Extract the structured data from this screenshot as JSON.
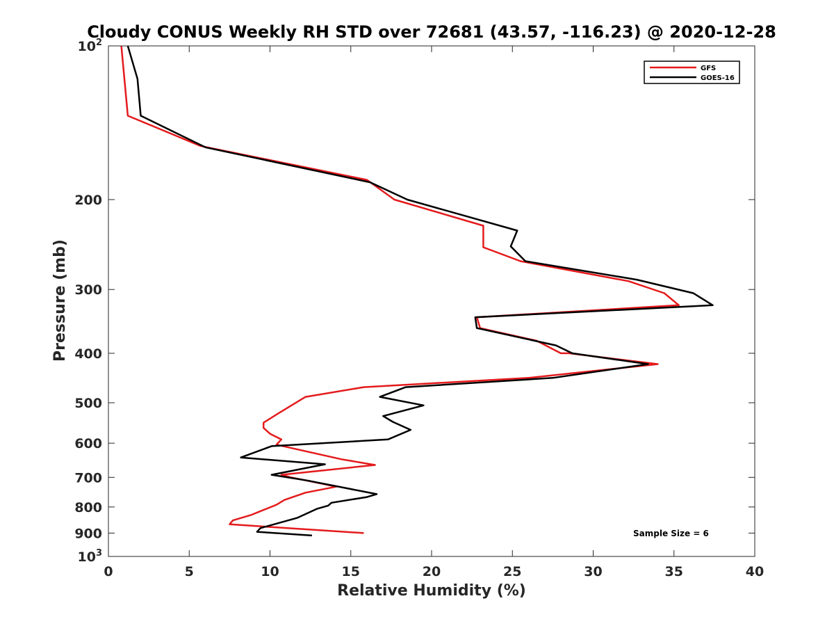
{
  "chart_data": {
    "type": "line",
    "title": "Cloudy CONUS Weekly RH STD over 72681 (43.57, -116.23) @ 2020-12-28",
    "xlabel": "Relative Humidity (%)",
    "ylabel": "Pressure (mb)",
    "xlim": [
      0,
      40
    ],
    "ylim": [
      100,
      1000
    ],
    "y_scale": "log",
    "y_reversed": true,
    "grid": false,
    "legend_position": "top-right",
    "annotation": "Sample Size = 6",
    "x_ticks": [
      "0",
      "5",
      "10",
      "15",
      "20",
      "25",
      "30",
      "35",
      "40"
    ],
    "y_ticks": [
      {
        "value": 100,
        "label": "10",
        "sup": "2"
      },
      {
        "value": 200,
        "label": "200",
        "sup": ""
      },
      {
        "value": 300,
        "label": "300",
        "sup": ""
      },
      {
        "value": 400,
        "label": "400",
        "sup": ""
      },
      {
        "value": 500,
        "label": "500",
        "sup": ""
      },
      {
        "value": 600,
        "label": "600",
        "sup": ""
      },
      {
        "value": 700,
        "label": "700",
        "sup": ""
      },
      {
        "value": 800,
        "label": "800",
        "sup": ""
      },
      {
        "value": 900,
        "label": "900",
        "sup": ""
      },
      {
        "value": 1000,
        "label": "10",
        "sup": "3"
      }
    ],
    "series": [
      {
        "name": "GFS",
        "color": "#e41a1c",
        "points": [
          [
            0.8,
            100
          ],
          [
            1.2,
            137
          ],
          [
            5.7,
            157
          ],
          [
            16.0,
            183
          ],
          [
            17.7,
            200
          ],
          [
            23.2,
            225
          ],
          [
            23.2,
            248
          ],
          [
            25.5,
            264
          ],
          [
            32.2,
            289
          ],
          [
            34.4,
            305
          ],
          [
            35.3,
            322
          ],
          [
            22.8,
            340
          ],
          [
            23.0,
            357
          ],
          [
            26.5,
            378
          ],
          [
            28.0,
            400
          ],
          [
            28.5,
            400
          ],
          [
            34.0,
            420
          ],
          [
            26.0,
            447
          ],
          [
            15.8,
            466
          ],
          [
            12.2,
            487
          ],
          [
            10.5,
            525
          ],
          [
            9.6,
            547
          ],
          [
            9.6,
            560
          ],
          [
            10.0,
            575
          ],
          [
            10.7,
            590
          ],
          [
            10.4,
            604
          ],
          [
            14.4,
            645
          ],
          [
            16.5,
            662
          ],
          [
            10.7,
            692
          ],
          [
            11.3,
            700
          ],
          [
            14.1,
            730
          ],
          [
            12.2,
            750
          ],
          [
            10.9,
            775
          ],
          [
            10.4,
            792
          ],
          [
            8.8,
            830
          ],
          [
            7.7,
            850
          ],
          [
            7.5,
            865
          ],
          [
            15.8,
            900
          ]
        ]
      },
      {
        "name": "GOES-16",
        "color": "#000000",
        "points": [
          [
            1.2,
            100
          ],
          [
            1.8,
            116
          ],
          [
            2.0,
            137
          ],
          [
            6.0,
            158
          ],
          [
            16.2,
            185
          ],
          [
            18.5,
            200
          ],
          [
            25.3,
            230
          ],
          [
            24.9,
            247
          ],
          [
            25.8,
            264
          ],
          [
            32.7,
            287
          ],
          [
            36.2,
            305
          ],
          [
            37.4,
            322
          ],
          [
            22.7,
            340
          ],
          [
            22.8,
            357
          ],
          [
            27.7,
            386
          ],
          [
            28.7,
            400
          ],
          [
            33.4,
            420
          ],
          [
            27.5,
            447
          ],
          [
            18.4,
            466
          ],
          [
            16.8,
            487
          ],
          [
            19.5,
            506
          ],
          [
            17.0,
            531
          ],
          [
            17.6,
            545
          ],
          [
            18.7,
            565
          ],
          [
            17.3,
            590
          ],
          [
            10.1,
            608
          ],
          [
            8.2,
            640
          ],
          [
            13.4,
            660
          ],
          [
            10.1,
            692
          ],
          [
            12.3,
            710
          ],
          [
            16.6,
            755
          ],
          [
            16.0,
            765
          ],
          [
            13.8,
            785
          ],
          [
            13.6,
            795
          ],
          [
            12.9,
            807
          ],
          [
            11.7,
            840
          ],
          [
            9.4,
            880
          ],
          [
            9.2,
            895
          ],
          [
            12.6,
            910
          ]
        ]
      }
    ]
  }
}
